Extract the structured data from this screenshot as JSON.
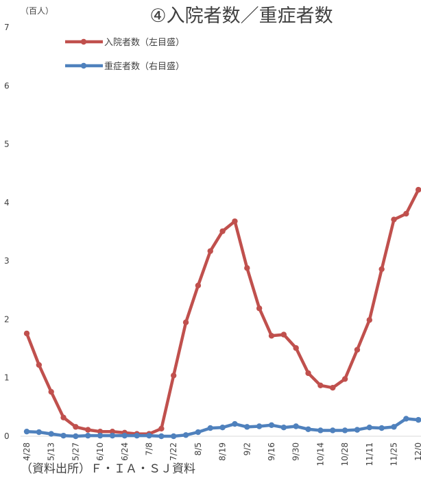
{
  "chart_data": {
    "type": "line",
    "title": "④入院者数／重症者数",
    "unit_label": "（百人）",
    "ylim": [
      0,
      7
    ],
    "yticks": [
      0,
      1,
      2,
      3,
      4,
      5,
      6,
      7
    ],
    "grid": false,
    "legend_position": "top-left",
    "x_tick_labels": [
      "4/28",
      "5/13",
      "5/27",
      "6/10",
      "6/24",
      "7/8",
      "7/22",
      "8/5",
      "8/19",
      "9/2",
      "9/16",
      "9/30",
      "10/14",
      "10/28",
      "11/11",
      "11/25",
      "12/0"
    ],
    "series": [
      {
        "name": "入院者数（左目盛）",
        "color": "#C0504D",
        "values": [
          1.76,
          1.22,
          0.76,
          0.32,
          0.16,
          0.11,
          0.08,
          0.08,
          0.06,
          0.04,
          0.04,
          0.13,
          1.04,
          1.95,
          2.58,
          3.17,
          3.51,
          3.68,
          2.88,
          2.19,
          1.72,
          1.74,
          1.51,
          1.08,
          0.87,
          0.83,
          0.98,
          1.48,
          1.99,
          2.86,
          3.71,
          3.81,
          4.22
        ]
      },
      {
        "name": "重症者数（右目盛）",
        "color": "#4F81BD",
        "values": [
          0.08,
          0.07,
          0.04,
          0.01,
          0.0,
          0.01,
          0.01,
          0.01,
          0.01,
          0.01,
          0.01,
          0.0,
          0.0,
          0.02,
          0.07,
          0.14,
          0.15,
          0.21,
          0.16,
          0.17,
          0.19,
          0.15,
          0.17,
          0.12,
          0.1,
          0.1,
          0.1,
          0.11,
          0.15,
          0.14,
          0.16,
          0.3,
          0.28
        ]
      }
    ],
    "source_note": "（資料出所）Ｆ・ＩＡ・ＳＪ資料"
  }
}
